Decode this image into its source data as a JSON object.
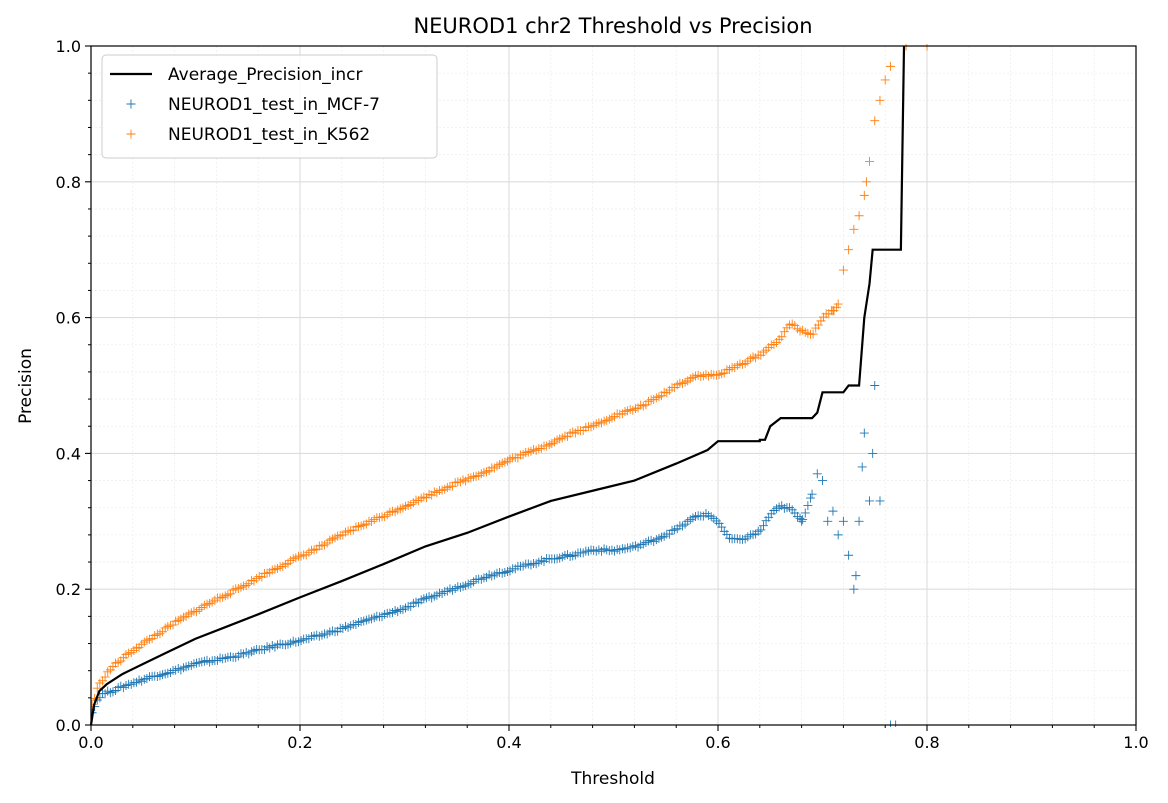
{
  "chart_data": {
    "type": "line",
    "title": "NEUROD1 chr2 Threshold vs Precision",
    "xlabel": "Threshold",
    "ylabel": "Precision",
    "xlim": [
      0,
      1
    ],
    "ylim": [
      0,
      1
    ],
    "xticks": [
      "0.0",
      "0.2",
      "0.4",
      "0.6",
      "0.8",
      "1.0"
    ],
    "yticks": [
      "0.0",
      "0.2",
      "0.4",
      "0.6",
      "0.8",
      "1.0"
    ],
    "grid": true,
    "minor_grid": true,
    "legend_position": "top-left",
    "series": [
      {
        "name": "Average_Precision_incr",
        "kind": "line",
        "color": "#000000",
        "points": [
          [
            0,
            0
          ],
          [
            0.003,
            0.03
          ],
          [
            0.008,
            0.05
          ],
          [
            0.015,
            0.06
          ],
          [
            0.03,
            0.075
          ],
          [
            0.05,
            0.09
          ],
          [
            0.07,
            0.105
          ],
          [
            0.1,
            0.127
          ],
          [
            0.13,
            0.145
          ],
          [
            0.16,
            0.163
          ],
          [
            0.2,
            0.188
          ],
          [
            0.24,
            0.212
          ],
          [
            0.28,
            0.237
          ],
          [
            0.32,
            0.263
          ],
          [
            0.36,
            0.283
          ],
          [
            0.4,
            0.307
          ],
          [
            0.44,
            0.33
          ],
          [
            0.48,
            0.345
          ],
          [
            0.52,
            0.36
          ],
          [
            0.56,
            0.385
          ],
          [
            0.59,
            0.405
          ],
          [
            0.6,
            0.418
          ],
          [
            0.64,
            0.418
          ],
          [
            0.64,
            0.42
          ],
          [
            0.645,
            0.42
          ],
          [
            0.65,
            0.44
          ],
          [
            0.66,
            0.452
          ],
          [
            0.69,
            0.452
          ],
          [
            0.695,
            0.46
          ],
          [
            0.7,
            0.49
          ],
          [
            0.72,
            0.49
          ],
          [
            0.725,
            0.5
          ],
          [
            0.735,
            0.5
          ],
          [
            0.738,
            0.56
          ],
          [
            0.74,
            0.6
          ],
          [
            0.745,
            0.65
          ],
          [
            0.748,
            0.7
          ],
          [
            0.775,
            0.7
          ],
          [
            0.776,
            0.8
          ],
          [
            0.778,
            1.0
          ]
        ]
      },
      {
        "name": "NEUROD1_test_in_MCF-7",
        "kind": "scatter",
        "marker": "+",
        "color": "#1f77b4",
        "points": [
          [
            0.002,
            0.02
          ],
          [
            0.005,
            0.035
          ],
          [
            0.01,
            0.045
          ],
          [
            0.02,
            0.05
          ],
          [
            0.04,
            0.062
          ],
          [
            0.06,
            0.072
          ],
          [
            0.08,
            0.08
          ],
          [
            0.1,
            0.09
          ],
          [
            0.12,
            0.096
          ],
          [
            0.14,
            0.102
          ],
          [
            0.16,
            0.11
          ],
          [
            0.18,
            0.118
          ],
          [
            0.2,
            0.124
          ],
          [
            0.22,
            0.132
          ],
          [
            0.24,
            0.142
          ],
          [
            0.26,
            0.152
          ],
          [
            0.28,
            0.162
          ],
          [
            0.3,
            0.172
          ],
          [
            0.32,
            0.185
          ],
          [
            0.34,
            0.197
          ],
          [
            0.36,
            0.208
          ],
          [
            0.38,
            0.22
          ],
          [
            0.4,
            0.228
          ],
          [
            0.42,
            0.237
          ],
          [
            0.44,
            0.245
          ],
          [
            0.46,
            0.25
          ],
          [
            0.48,
            0.258
          ],
          [
            0.5,
            0.257
          ],
          [
            0.52,
            0.262
          ],
          [
            0.54,
            0.273
          ],
          [
            0.56,
            0.288
          ],
          [
            0.58,
            0.308
          ],
          [
            0.59,
            0.31
          ],
          [
            0.6,
            0.3
          ],
          [
            0.61,
            0.275
          ],
          [
            0.62,
            0.272
          ],
          [
            0.63,
            0.278
          ],
          [
            0.64,
            0.285
          ],
          [
            0.65,
            0.31
          ],
          [
            0.66,
            0.322
          ],
          [
            0.67,
            0.318
          ],
          [
            0.68,
            0.3
          ],
          [
            0.69,
            0.34
          ],
          [
            0.695,
            0.37
          ],
          [
            0.7,
            0.36
          ],
          [
            0.705,
            0.3
          ],
          [
            0.71,
            0.315
          ],
          [
            0.715,
            0.28
          ],
          [
            0.72,
            0.3
          ],
          [
            0.725,
            0.25
          ],
          [
            0.73,
            0.2
          ],
          [
            0.732,
            0.22
          ],
          [
            0.735,
            0.3
          ],
          [
            0.738,
            0.38
          ],
          [
            0.74,
            0.43
          ],
          [
            0.745,
            0.33
          ],
          [
            0.748,
            0.4
          ],
          [
            0.75,
            0.5
          ],
          [
            0.755,
            0.33
          ],
          [
            0.765,
            0.0
          ],
          [
            0.77,
            0.0
          ]
        ]
      },
      {
        "name": "NEUROD1_test_in_K562",
        "kind": "scatter",
        "marker": "+",
        "color": "#ff7f0e",
        "points": [
          [
            0.002,
            0.03
          ],
          [
            0.005,
            0.05
          ],
          [
            0.01,
            0.065
          ],
          [
            0.02,
            0.085
          ],
          [
            0.04,
            0.11
          ],
          [
            0.06,
            0.13
          ],
          [
            0.08,
            0.15
          ],
          [
            0.1,
            0.168
          ],
          [
            0.12,
            0.185
          ],
          [
            0.14,
            0.2
          ],
          [
            0.16,
            0.217
          ],
          [
            0.18,
            0.233
          ],
          [
            0.2,
            0.248
          ],
          [
            0.22,
            0.263
          ],
          [
            0.24,
            0.28
          ],
          [
            0.26,
            0.295
          ],
          [
            0.28,
            0.308
          ],
          [
            0.3,
            0.322
          ],
          [
            0.32,
            0.336
          ],
          [
            0.34,
            0.35
          ],
          [
            0.36,
            0.362
          ],
          [
            0.38,
            0.375
          ],
          [
            0.4,
            0.39
          ],
          [
            0.42,
            0.402
          ],
          [
            0.44,
            0.415
          ],
          [
            0.46,
            0.43
          ],
          [
            0.48,
            0.44
          ],
          [
            0.5,
            0.455
          ],
          [
            0.52,
            0.465
          ],
          [
            0.54,
            0.48
          ],
          [
            0.56,
            0.5
          ],
          [
            0.58,
            0.515
          ],
          [
            0.6,
            0.515
          ],
          [
            0.62,
            0.53
          ],
          [
            0.64,
            0.545
          ],
          [
            0.66,
            0.57
          ],
          [
            0.67,
            0.592
          ],
          [
            0.68,
            0.58
          ],
          [
            0.69,
            0.575
          ],
          [
            0.7,
            0.6
          ],
          [
            0.71,
            0.61
          ],
          [
            0.715,
            0.62
          ],
          [
            0.72,
            0.67
          ],
          [
            0.725,
            0.7
          ],
          [
            0.73,
            0.73
          ],
          [
            0.735,
            0.75
          ],
          [
            0.74,
            0.78
          ],
          [
            0.742,
            0.8
          ],
          [
            0.745,
            0.83
          ],
          [
            0.75,
            0.89
          ],
          [
            0.755,
            0.92
          ],
          [
            0.76,
            0.95
          ],
          [
            0.765,
            0.97
          ],
          [
            0.78,
            1.0
          ],
          [
            0.8,
            1.0
          ]
        ]
      }
    ]
  }
}
